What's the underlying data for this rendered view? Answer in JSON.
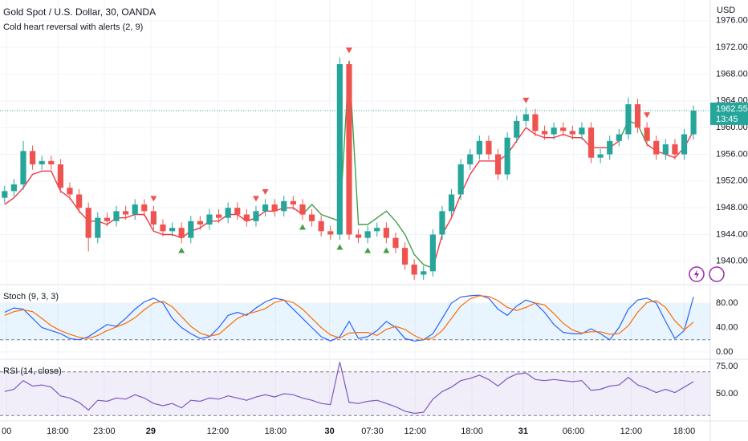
{
  "chart_data": {
    "type": "candlestick",
    "title": "Gold Spot / U.S. Dollar, 30, OANDA",
    "indicator": "Cold heart reversal with alerts (2, 9)",
    "currency": "USD",
    "up_color": "#26a69a",
    "down_color": "#ef5350",
    "open": [
      1949.5,
      1950.5,
      1951.5,
      1956.5,
      1954.5,
      1955,
      1954.5,
      1951,
      1950,
      1948,
      1943.5,
      1946.5,
      1946,
      1947.5,
      1947,
      1948.5,
      1947.5,
      1945.5,
      1944.5,
      1945,
      1943.5,
      1946,
      1945.5,
      1947,
      1946.5,
      1948,
      1947,
      1946,
      1947.5,
      1948.5,
      1947.5,
      1949,
      1948.5,
      1947,
      1946,
      1944.5,
      1944,
      1969.5,
      1944,
      1943.5,
      1944.5,
      1945,
      1943.5,
      1942,
      1939.5,
      1938,
      1938.5,
      1944,
      1947.5,
      1950,
      1954.5,
      1956,
      1958,
      1956,
      1953,
      1958.5,
      1961,
      1962,
      1959.5,
      1959,
      1960,
      1959.5,
      1959,
      1960,
      1955.5,
      1956,
      1958,
      1959,
      1963.5,
      1960,
      1958,
      1956,
      1957.5,
      1956,
      1959
    ],
    "high": [
      1951.3,
      1952.3,
      1958,
      1957.3,
      1955.8,
      1955.8,
      1955.3,
      1951.8,
      1950.8,
      1948.8,
      1947.3,
      1947.3,
      1948.3,
      1948.3,
      1949.3,
      1949.3,
      1948.3,
      1946.3,
      1945.8,
      1945.8,
      1946.8,
      1946.8,
      1947.8,
      1947.8,
      1948.8,
      1948.8,
      1947.8,
      1948.3,
      1949.3,
      1949.3,
      1949.8,
      1949.8,
      1949.3,
      1947.8,
      1946.8,
      1945.3,
      1970.5,
      1970,
      1944.8,
      1945.3,
      1945.8,
      1945.8,
      1944.3,
      1942.8,
      1940.3,
      1939.3,
      1944.8,
      1948.3,
      1950.8,
      1955.3,
      1956.8,
      1958.8,
      1958.8,
      1956.8,
      1959.3,
      1961.8,
      1963,
      1962.8,
      1960.3,
      1960.8,
      1960.8,
      1960.3,
      1960.8,
      1960.8,
      1956.8,
      1958.8,
      1959.8,
      1964.5,
      1964.3,
      1960.8,
      1958.8,
      1958.3,
      1958.3,
      1959.8,
      1963.3
    ],
    "low": [
      1948.7,
      1949.7,
      1950.7,
      1953.7,
      1953.7,
      1953.7,
      1950.2,
      1949.2,
      1947.2,
      1941.5,
      1942.7,
      1945.2,
      1945.2,
      1946.2,
      1946.2,
      1946.7,
      1944.7,
      1943.7,
      1943.7,
      1942.7,
      1942.7,
      1944.7,
      1944.7,
      1945.7,
      1945.7,
      1946.2,
      1945.2,
      1945.2,
      1946.7,
      1946.7,
      1946.7,
      1947.7,
      1946.2,
      1945.2,
      1943.7,
      1943.2,
      1943.2,
      1943.2,
      1942.7,
      1942.7,
      1943.7,
      1942.7,
      1941.2,
      1938.7,
      1937.2,
      1937.2,
      1937.7,
      1943.2,
      1946.7,
      1949.2,
      1953.7,
      1955.2,
      1955.2,
      1952.2,
      1952.2,
      1957.7,
      1960.2,
      1958.7,
      1958.2,
      1958.2,
      1958.7,
      1958.2,
      1958.2,
      1954.7,
      1954.7,
      1955.2,
      1957.2,
      1958.2,
      1959.2,
      1957.2,
      1955.2,
      1955.2,
      1955.2,
      1955.2,
      1958.2
    ],
    "close": [
      1950.5,
      1951.5,
      1956.5,
      1954.5,
      1955,
      1954.5,
      1951,
      1950,
      1948,
      1943.5,
      1946.5,
      1946,
      1947.5,
      1947,
      1948.5,
      1947.5,
      1945.5,
      1944.5,
      1945,
      1943.5,
      1946,
      1945.5,
      1947,
      1946.5,
      1948,
      1947,
      1946,
      1947.5,
      1948.5,
      1947.5,
      1949,
      1948.5,
      1947,
      1946,
      1944.5,
      1944,
      1969.5,
      1944,
      1943.5,
      1944.5,
      1945,
      1943.5,
      1942,
      1939.5,
      1938,
      1938.5,
      1944,
      1947.5,
      1950,
      1954.5,
      1956,
      1958,
      1956,
      1953,
      1958.5,
      1961,
      1962,
      1959.5,
      1959,
      1960,
      1959.5,
      1959,
      1960,
      1955.5,
      1956,
      1958,
      1959,
      1963.5,
      1960,
      1958,
      1956,
      1957.5,
      1956,
      1959,
      1962.55
    ],
    "series": [
      {
        "color": "#f23645",
        "values": [
          1948.5,
          1949.5,
          1951,
          1953,
          1953.5,
          1953.5,
          1950.5,
          1949.5,
          1947.5,
          1946,
          1946,
          1945.5,
          1946.5,
          1946.5,
          1947,
          1947,
          1944.5,
          1944,
          1944,
          1943.5,
          1944.5,
          1945,
          1946,
          1946,
          1947,
          1947,
          1946,
          1946.5,
          1947.5,
          1947.5,
          1948,
          1948,
          1947,
          null,
          null,
          null,
          null,
          null,
          null,
          null,
          null,
          null,
          null,
          null,
          null,
          null,
          1939,
          1944,
          1946.5,
          1950,
          1953,
          1955,
          1955,
          1955,
          1956,
          1958,
          1960,
          1959,
          1958.5,
          1958.5,
          1959,
          1958.5,
          1958.5,
          1957,
          1957,
          1957,
          1958,
          null,
          null,
          1957.5,
          1956.5,
          1956,
          1955.5,
          1957,
          1959.5
        ]
      },
      {
        "color": "#43a047",
        "values": [
          null,
          null,
          null,
          null,
          null,
          null,
          null,
          null,
          null,
          null,
          null,
          null,
          null,
          null,
          null,
          null,
          null,
          null,
          null,
          null,
          null,
          null,
          null,
          null,
          null,
          null,
          null,
          null,
          null,
          null,
          null,
          null,
          1947,
          1948.5,
          1947,
          1946.5,
          1946,
          1970,
          1945.5,
          1945.5,
          1946.5,
          1947.5,
          1946,
          1944,
          1941,
          1939.5,
          1939,
          null,
          null,
          null,
          null,
          null,
          null,
          null,
          null,
          null,
          null,
          null,
          null,
          null,
          null,
          null,
          null,
          null,
          null,
          null,
          1958,
          1961,
          1960.5,
          1957.5,
          null,
          null,
          null,
          null,
          null
        ]
      }
    ],
    "sell_color": "#ef5350",
    "sell_signals": [
      {
        "x": 16,
        "y": 1949.3
      },
      {
        "x": 27,
        "y": 1949.3
      },
      {
        "x": 28,
        "y": 1950.3
      },
      {
        "x": 37,
        "y": 1971.5
      },
      {
        "x": 56,
        "y": 1964
      },
      {
        "x": 69,
        "y": 1961.8
      }
    ],
    "buy_color": "#43a047",
    "buy_signals": [
      {
        "x": 19,
        "y": 1941.7
      },
      {
        "x": 32,
        "y": 1945.2
      },
      {
        "x": 36,
        "y": 1942.2
      },
      {
        "x": 39,
        "y": 1941.7
      },
      {
        "x": 41,
        "y": 1941.7
      }
    ],
    "ylim": [
      1936.5,
      1979.1
    ],
    "yticks": [
      {
        "value": 1940,
        "label": "1940.000"
      },
      {
        "value": 1944,
        "label": "1944.000"
      },
      {
        "value": 1948,
        "label": "1948.000"
      },
      {
        "value": 1952,
        "label": "1952.000"
      },
      {
        "value": 1956,
        "label": "1956.000"
      },
      {
        "value": 1960,
        "label": "1960.000"
      },
      {
        "value": 1964,
        "label": "1964.000"
      },
      {
        "value": 1968,
        "label": "1968.000"
      },
      {
        "value": 1972,
        "label": "1972.000"
      },
      {
        "value": 1976,
        "label": "1976.000"
      }
    ],
    "xlim": [
      -0.5,
      75.8
    ],
    "xticks": [
      {
        "value": 0.2,
        "label": "00"
      },
      {
        "value": 5.7,
        "label": "18:00"
      },
      {
        "value": 10.7,
        "label": "23:00"
      },
      {
        "value": 15.7,
        "label": "29",
        "bold": true
      },
      {
        "value": 22.9,
        "label": "12:00"
      },
      {
        "value": 29.1,
        "label": "18:00"
      },
      {
        "value": 34.9,
        "label": "30",
        "bold": true
      },
      {
        "value": 39.5,
        "label": "07:30"
      },
      {
        "value": 44.1,
        "label": "12:00"
      },
      {
        "value": 50.2,
        "label": "18:00"
      },
      {
        "value": 55.7,
        "label": "31",
        "bold": true
      },
      {
        "value": 61.1,
        "label": "06:00"
      },
      {
        "value": 67.3,
        "label": "12:00"
      },
      {
        "value": 73.0,
        "label": "18:00"
      }
    ],
    "grid": true,
    "last_price": {
      "value": 1962.55,
      "label": "1962.550",
      "countdown": "13:45",
      "color": "#26a69a"
    },
    "panes": [
      {
        "type": "line",
        "title": "Stoch (9, 3, 3)",
        "ylim": [
          -11.8,
          110.2
        ],
        "yticks": [
          {
            "value": 0,
            "label": "0.00"
          },
          {
            "value": 40,
            "label": "40.00"
          },
          {
            "value": 80,
            "label": "80.00"
          }
        ],
        "bands": [
          20,
          80
        ],
        "band_fill": "rgba(33,150,243,0.1)",
        "series": [
          {
            "color": "#2962ff",
            "values": [
              65,
              72,
              70,
              55,
              40,
              35,
              30,
              22,
              20,
              25,
              35,
              45,
              42,
              55,
              70,
              82,
              88,
              80,
              55,
              40,
              30,
              22,
              25,
              40,
              60,
              65,
              60,
              72,
              82,
              88,
              85,
              70,
              55,
              40,
              25,
              18,
              25,
              50,
              22,
              25,
              35,
              50,
              40,
              22,
              18,
              20,
              30,
              55,
              80,
              90,
              92,
              93,
              88,
              70,
              60,
              75,
              85,
              80,
              65,
              45,
              32,
              30,
              30,
              38,
              30,
              20,
              40,
              70,
              85,
              88,
              80,
              50,
              22,
              35,
              90
            ]
          },
          {
            "color": "#ff6d00",
            "values": [
              60,
              66,
              69,
              66,
              55,
              43,
              35,
              29,
              24,
              22,
              27,
              35,
              41,
              47,
              56,
              69,
              80,
              83,
              74,
              58,
              42,
              31,
              26,
              29,
              42,
              55,
              62,
              66,
              71,
              81,
              85,
              81,
              70,
              55,
              40,
              28,
              23,
              31,
              32,
              32,
              27,
              37,
              42,
              37,
              27,
              20,
              23,
              35,
              55,
              75,
              87,
              92,
              91,
              84,
              73,
              68,
              73,
              80,
              77,
              63,
              47,
              36,
              31,
              33,
              33,
              29,
              30,
              43,
              65,
              81,
              84,
              73,
              51,
              36,
              49
            ]
          }
        ]
      },
      {
        "type": "line",
        "title": "RSI (14, close)",
        "ylim": [
          25,
          81.6
        ],
        "yticks": [
          {
            "value": 50,
            "label": "50.00"
          },
          {
            "value": 75,
            "label": "75.00"
          }
        ],
        "bands": [
          30,
          70
        ],
        "band_fill": "rgba(126,87,194,0.1)",
        "series": [
          {
            "color": "#7e57c2",
            "values": [
              52,
              54,
              62,
              57,
              58,
              56,
              48,
              46,
              42,
              35,
              44,
              43,
              46,
              45,
              49,
              46,
              41,
              39,
              41,
              37,
              44,
              43,
              46,
              45,
              48,
              46,
              44,
              47,
              49,
              47,
              50,
              49,
              46,
              44,
              41,
              40,
              79,
              42,
              41,
              43,
              44,
              41,
              38,
              34,
              32,
              33,
              45,
              52,
              56,
              62,
              64,
              67,
              63,
              57,
              64,
              68,
              69,
              63,
              62,
              63,
              62,
              61,
              62,
              53,
              54,
              57,
              58,
              65,
              58,
              55,
              51,
              54,
              51,
              56,
              61
            ]
          }
        ]
      }
    ]
  }
}
